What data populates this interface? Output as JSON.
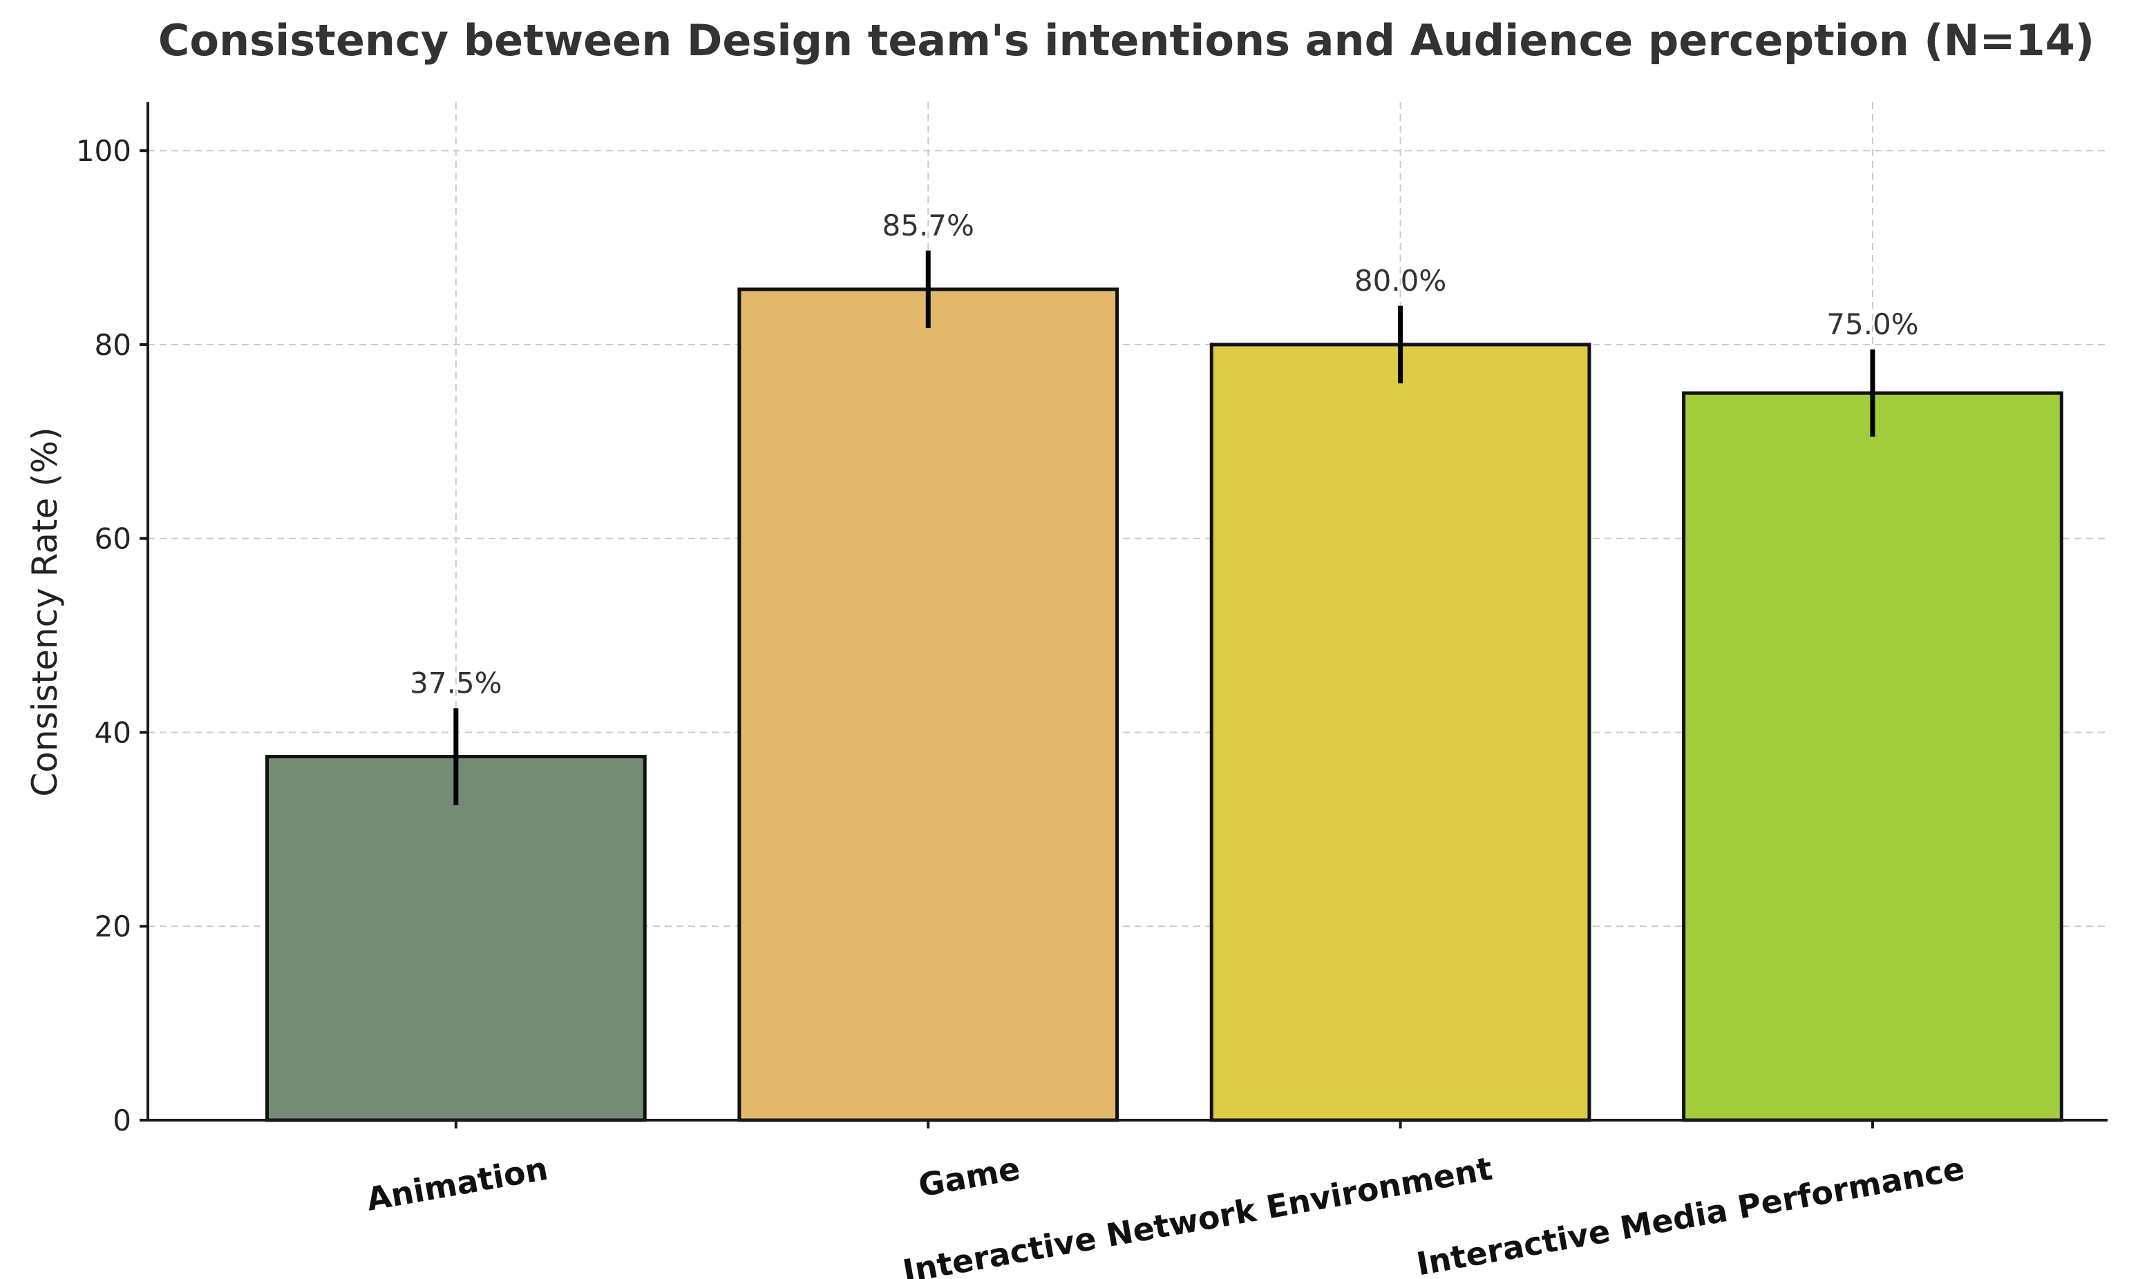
{
  "chart_data": {
    "type": "bar",
    "title": "Consistency between Design team's intentions and Audience perception (N=14)",
    "xlabel": "",
    "ylabel": "Consistency Rate (%)",
    "ylim": [
      0,
      105
    ],
    "yticks": [
      0,
      20,
      40,
      60,
      80,
      100
    ],
    "grid": true,
    "categories": [
      "Animation",
      "Game",
      "Interactive Network Environment",
      "Interactive Media Performance"
    ],
    "values": [
      37.5,
      85.7,
      80.0,
      75.0
    ],
    "error": [
      5.0,
      4.0,
      4.0,
      4.5
    ],
    "value_labels": [
      "37.5%",
      "85.7%",
      "80.0%",
      "75.0%"
    ],
    "colors": [
      "#748c76",
      "#e2b96a",
      "#dbcb45",
      "#a1cc3b"
    ]
  }
}
